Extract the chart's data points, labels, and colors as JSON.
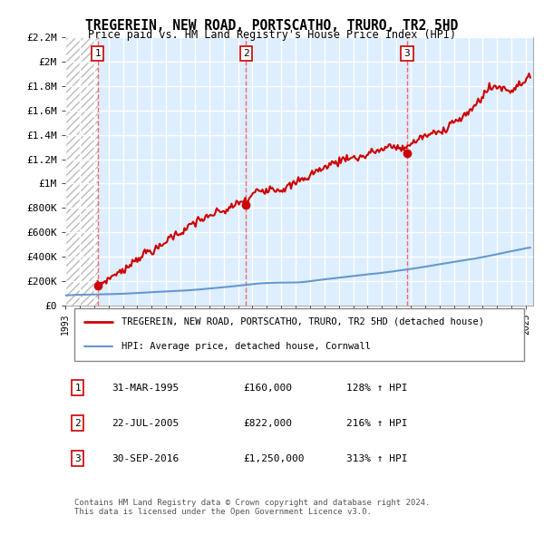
{
  "title": "TREGEREIN, NEW ROAD, PORTSCATHO, TRURO, TR2 5HD",
  "subtitle": "Price paid vs. HM Land Registry's House Price Index (HPI)",
  "ylim": [
    0,
    2200000
  ],
  "yticks": [
    0,
    200000,
    400000,
    600000,
    800000,
    1000000,
    1200000,
    1400000,
    1600000,
    1800000,
    2000000,
    2200000
  ],
  "ytick_labels": [
    "£0",
    "£200K",
    "£400K",
    "£600K",
    "£800K",
    "£1M",
    "£1.2M",
    "£1.4M",
    "£1.6M",
    "£1.8M",
    "£2M",
    "£2.2M"
  ],
  "xlim_start": 1993.0,
  "xlim_end": 2025.5,
  "transactions": [
    {
      "date_num": 1995.25,
      "price": 160000,
      "label": "1"
    },
    {
      "date_num": 2005.55,
      "price": 822000,
      "label": "2"
    },
    {
      "date_num": 2016.75,
      "price": 1250000,
      "label": "3"
    }
  ],
  "legend_entries": [
    {
      "label": "TREGEREIN, NEW ROAD, PORTSCATHO, TRURO, TR2 5HD (detached house)",
      "color": "#cc0000",
      "lw": 2
    },
    {
      "label": "HPI: Average price, detached house, Cornwall",
      "color": "#6699cc",
      "lw": 1.5
    }
  ],
  "table_rows": [
    {
      "num": "1",
      "date": "31-MAR-1995",
      "price": "£160,000",
      "hpi": "128% ↑ HPI"
    },
    {
      "num": "2",
      "date": "22-JUL-2005",
      "price": "£822,000",
      "hpi": "216% ↑ HPI"
    },
    {
      "num": "3",
      "date": "30-SEP-2016",
      "price": "£1,250,000",
      "hpi": "313% ↑ HPI"
    }
  ],
  "footer": "Contains HM Land Registry data © Crown copyright and database right 2024.\nThis data is licensed under the Open Government Licence v3.0.",
  "bg_hatch_color": "#cccccc",
  "plot_bg_color": "#ddeeff",
  "grid_color": "#ffffff",
  "vline_color": "#ff4444",
  "title_fontsize": 11,
  "subtitle_fontsize": 9,
  "red_line_color": "#cc0000",
  "blue_line_color": "#6699cc"
}
